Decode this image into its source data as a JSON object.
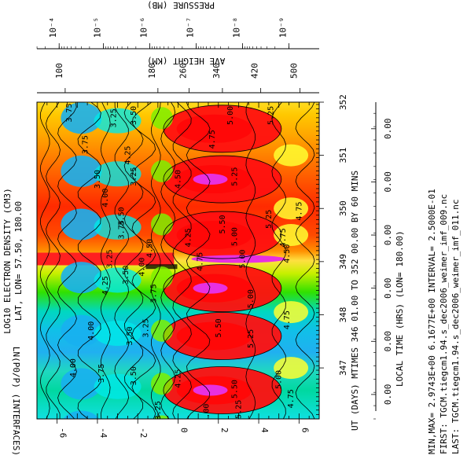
{
  "chart_data": {
    "type": "heatmap",
    "title": "LOG10 ELECTRON DENSITY (CM3)",
    "subtitle": "LAT, LON= 57.50, 180.00",
    "ylabel": "LN(P0/P) (INTERFACES)",
    "ylim": [
      -7,
      7
    ],
    "y_ticks": [
      "6",
      "4",
      "2",
      "0",
      "-2",
      "-4",
      "-6"
    ],
    "xlabel_top": "UT (DAYS) MTIMES 346 01.00 TO 352 00.00 BY  60 MINS",
    "xlabel_bottom": "LOCAL TIME (HRS) (LON= 180.00)",
    "xlim": [
      346.04,
      352.0
    ],
    "ut_ticks": [
      "347",
      "348",
      "349",
      "350",
      "351",
      "352"
    ],
    "lt_ticks": [
      "0.00",
      "0.00",
      "0.00",
      "0.00",
      "0.00",
      "0.00"
    ],
    "height_axis": {
      "label": "AVE HEIGHT (KM)",
      "ticks": [
        "500",
        "420",
        "340",
        "260",
        "180",
        "100"
      ]
    },
    "pressure_axis": {
      "label": "PRESSURE (MB)",
      "ticks": [
        "10⁻⁹",
        "10⁻⁸",
        "10⁻⁷",
        "10⁻⁶",
        "10⁻⁵",
        "10⁻⁴"
      ]
    },
    "contour_interval": 0.25,
    "min": 2.9743,
    "max": 6.1677,
    "contour_labels": [
      "4.75",
      "5.00",
      "5.25",
      "5.50",
      "4.50",
      "4.25",
      "4.00",
      "3.75",
      "3.50",
      "3.25"
    ],
    "info": [
      "MIN,MAX=  2.9743E+00  6.1677E+00 INTERVAL=  2.5000E-01",
      "FIRST: TGCM.tiegcm1.94.s_dec2006_weimer_imf_009.nc",
      "LAST:  TGCM.tiegcm1.94.s_dec2006_weimer_imf_011.nc"
    ],
    "colors": {
      "magenta": "#e830e0",
      "red": "#ff1010",
      "orange_red": "#ff5a00",
      "orange": "#ffa000",
      "yellow": "#ffff30",
      "green": "#00d800",
      "light_green": "#7ef000",
      "cyan": "#00e8e8",
      "sky": "#18b0f0"
    }
  }
}
